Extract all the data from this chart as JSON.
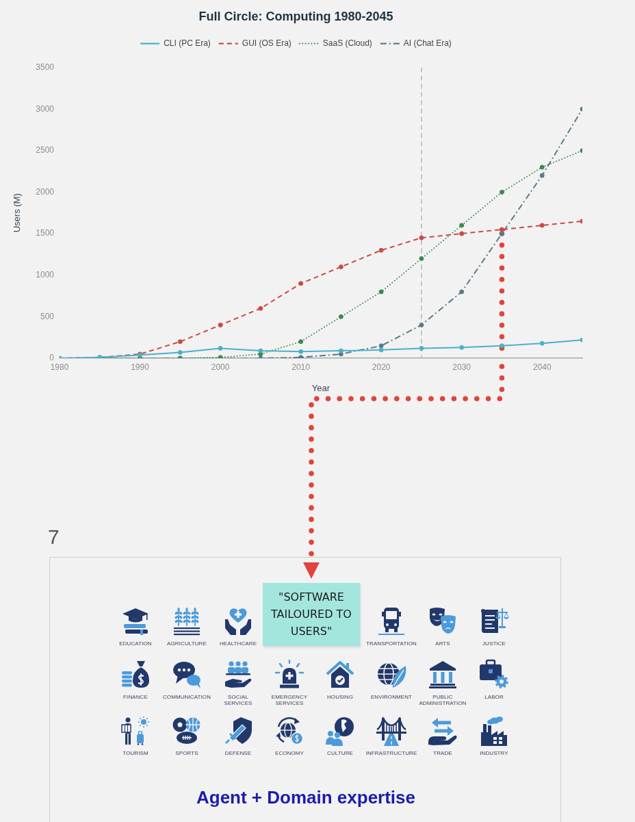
{
  "chart_data": {
    "type": "line",
    "title": "Full Circle: Computing 1980-2045",
    "xlabel": "Year",
    "ylabel": "Users (M)",
    "x": [
      1980,
      1985,
      1990,
      1995,
      2000,
      2005,
      2010,
      2015,
      2020,
      2025,
      2030,
      2035,
      2040,
      2045
    ],
    "xlim": [
      1980,
      2045
    ],
    "xticks": [
      1980,
      1990,
      2000,
      2010,
      2020,
      2030,
      2040
    ],
    "ylim": [
      0,
      3500
    ],
    "yticks": [
      0,
      500,
      1000,
      1500,
      2000,
      2500,
      3000,
      3500
    ],
    "series": [
      {
        "name": "CLI (PC Era)",
        "color": "#4cb0c8",
        "line_style": "solid",
        "values": [
          0,
          10,
          40,
          70,
          120,
          90,
          80,
          90,
          100,
          120,
          130,
          150,
          180,
          220
        ]
      },
      {
        "name": "GUI (OS Era)",
        "color": "#cc4a42",
        "line_style": "dashed",
        "values": [
          0,
          10,
          50,
          200,
          400,
          600,
          900,
          1100,
          1300,
          1450,
          1500,
          1550,
          1600,
          1650
        ]
      },
      {
        "name": "SaaS (Cloud)",
        "color": "#3a8a4e",
        "line_style": "dotted",
        "values": [
          0,
          0,
          0,
          0,
          10,
          50,
          200,
          500,
          800,
          1200,
          1600,
          2000,
          2300,
          2500
        ]
      },
      {
        "name": "AI (Chat Era)",
        "color": "#5a7b88",
        "line_style": "dashdot",
        "values": [
          0,
          0,
          0,
          0,
          0,
          0,
          10,
          50,
          150,
          400,
          800,
          1500,
          2200,
          3000
        ]
      },
      {
        "x": [
          2035,
          2035
        ],
        "values": [
          1500,
          0
        ],
        "color": "#e0443c",
        "line_style": "dotted",
        "marker": "none"
      }
    ],
    "marker": "circle",
    "legend": "top",
    "ref_lines": [
      {
        "axis": "x",
        "value": 2025,
        "color": "#a8a8a8",
        "line_style": "dashed"
      }
    ],
    "annotations": [
      "\"SOFTWARE TAILOURED TO USERS\"",
      "7",
      "EDUCATION",
      "AGRICULTURE",
      "HEALTHCARE",
      "TRANSPORTATION",
      "ARTS",
      "JUSTICE",
      "FINANCE",
      "COMMUNICATION",
      "SOCIAL SERVICES",
      "EMERGENCY SERVICES",
      "HOUSING",
      "ENVIRONMENT",
      "PUBLIC ADMINISTRATION",
      "LABOR",
      "TOURISM",
      "SPORTS",
      "DEFENSE",
      "ECONOMY",
      "CULTURE",
      "INFRASTRUCTURE",
      "TRADE",
      "INDUSTRY",
      "Agent + Domain expertise"
    ]
  }
}
